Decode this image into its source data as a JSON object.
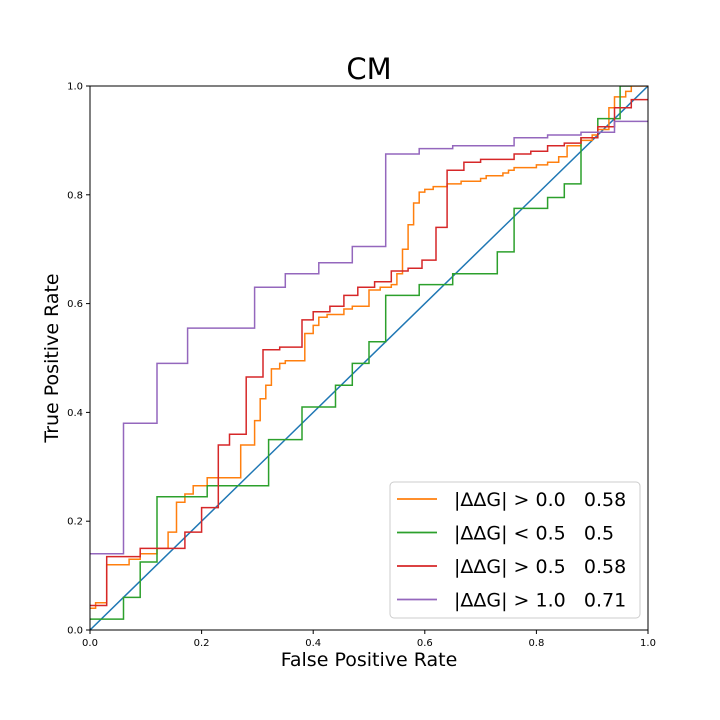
{
  "chart_data": {
    "type": "line",
    "title": "CM",
    "xlabel": "False Positive Rate",
    "ylabel": "True Positive Rate",
    "xlim": [
      0.0,
      1.0
    ],
    "ylim": [
      0.0,
      1.0
    ],
    "xticks": [
      "0.0",
      "0.2",
      "0.4",
      "0.6",
      "0.8",
      "1.0"
    ],
    "yticks": [
      "0.0",
      "0.2",
      "0.4",
      "0.6",
      "0.8",
      "1.0"
    ],
    "grid": false,
    "legend_position": "lower-right",
    "diagonal": {
      "color": "#1f77b4",
      "x": [
        0.0,
        1.0
      ],
      "y": [
        0.0,
        1.0
      ]
    },
    "series": [
      {
        "name": "|ΔΔG| > 0.0   0.58",
        "color": "#ff7f0e",
        "steps": [
          [
            0,
            0.04
          ],
          [
            0.01,
            0.04
          ],
          [
            0.01,
            0.05
          ],
          [
            0.03,
            0.05
          ],
          [
            0.03,
            0.12
          ],
          [
            0.07,
            0.12
          ],
          [
            0.07,
            0.13
          ],
          [
            0.09,
            0.13
          ],
          [
            0.09,
            0.14
          ],
          [
            0.12,
            0.14
          ],
          [
            0.12,
            0.15
          ],
          [
            0.14,
            0.15
          ],
          [
            0.14,
            0.18
          ],
          [
            0.155,
            0.18
          ],
          [
            0.155,
            0.235
          ],
          [
            0.17,
            0.235
          ],
          [
            0.17,
            0.25
          ],
          [
            0.185,
            0.25
          ],
          [
            0.185,
            0.265
          ],
          [
            0.21,
            0.265
          ],
          [
            0.21,
            0.28
          ],
          [
            0.27,
            0.28
          ],
          [
            0.27,
            0.34
          ],
          [
            0.295,
            0.34
          ],
          [
            0.295,
            0.385
          ],
          [
            0.305,
            0.385
          ],
          [
            0.305,
            0.425
          ],
          [
            0.315,
            0.425
          ],
          [
            0.315,
            0.45
          ],
          [
            0.325,
            0.45
          ],
          [
            0.325,
            0.48
          ],
          [
            0.34,
            0.48
          ],
          [
            0.34,
            0.49
          ],
          [
            0.35,
            0.49
          ],
          [
            0.35,
            0.495
          ],
          [
            0.385,
            0.495
          ],
          [
            0.385,
            0.545
          ],
          [
            0.4,
            0.545
          ],
          [
            0.4,
            0.56
          ],
          [
            0.41,
            0.56
          ],
          [
            0.41,
            0.575
          ],
          [
            0.425,
            0.575
          ],
          [
            0.425,
            0.58
          ],
          [
            0.455,
            0.58
          ],
          [
            0.455,
            0.59
          ],
          [
            0.47,
            0.59
          ],
          [
            0.47,
            0.595
          ],
          [
            0.5,
            0.595
          ],
          [
            0.5,
            0.625
          ],
          [
            0.52,
            0.625
          ],
          [
            0.52,
            0.63
          ],
          [
            0.54,
            0.63
          ],
          [
            0.54,
            0.635
          ],
          [
            0.55,
            0.635
          ],
          [
            0.55,
            0.655
          ],
          [
            0.56,
            0.655
          ],
          [
            0.56,
            0.7
          ],
          [
            0.57,
            0.7
          ],
          [
            0.57,
            0.745
          ],
          [
            0.58,
            0.745
          ],
          [
            0.58,
            0.785
          ],
          [
            0.59,
            0.785
          ],
          [
            0.59,
            0.805
          ],
          [
            0.6,
            0.805
          ],
          [
            0.6,
            0.81
          ],
          [
            0.615,
            0.81
          ],
          [
            0.615,
            0.815
          ],
          [
            0.64,
            0.815
          ],
          [
            0.64,
            0.82
          ],
          [
            0.665,
            0.82
          ],
          [
            0.665,
            0.825
          ],
          [
            0.7,
            0.825
          ],
          [
            0.7,
            0.83
          ],
          [
            0.71,
            0.83
          ],
          [
            0.71,
            0.835
          ],
          [
            0.74,
            0.835
          ],
          [
            0.74,
            0.84
          ],
          [
            0.75,
            0.84
          ],
          [
            0.75,
            0.845
          ],
          [
            0.76,
            0.845
          ],
          [
            0.76,
            0.85
          ],
          [
            0.8,
            0.85
          ],
          [
            0.8,
            0.855
          ],
          [
            0.82,
            0.855
          ],
          [
            0.82,
            0.86
          ],
          [
            0.84,
            0.86
          ],
          [
            0.84,
            0.87
          ],
          [
            0.855,
            0.87
          ],
          [
            0.855,
            0.89
          ],
          [
            0.88,
            0.89
          ],
          [
            0.88,
            0.9
          ],
          [
            0.9,
            0.9
          ],
          [
            0.9,
            0.91
          ],
          [
            0.91,
            0.91
          ],
          [
            0.91,
            0.92
          ],
          [
            0.93,
            0.92
          ],
          [
            0.93,
            0.96
          ],
          [
            0.94,
            0.96
          ],
          [
            0.94,
            0.98
          ],
          [
            0.96,
            0.98
          ],
          [
            0.96,
            0.99
          ],
          [
            0.97,
            0.99
          ],
          [
            0.97,
            1.0
          ],
          [
            1.0,
            1.0
          ]
        ]
      },
      {
        "name": "|ΔΔG| < 0.5   0.5",
        "color": "#2ca02c",
        "steps": [
          [
            0,
            0.02
          ],
          [
            0.06,
            0.02
          ],
          [
            0.06,
            0.06
          ],
          [
            0.09,
            0.06
          ],
          [
            0.09,
            0.125
          ],
          [
            0.12,
            0.125
          ],
          [
            0.12,
            0.245
          ],
          [
            0.21,
            0.245
          ],
          [
            0.21,
            0.265
          ],
          [
            0.32,
            0.265
          ],
          [
            0.32,
            0.35
          ],
          [
            0.38,
            0.35
          ],
          [
            0.38,
            0.41
          ],
          [
            0.44,
            0.41
          ],
          [
            0.44,
            0.45
          ],
          [
            0.47,
            0.45
          ],
          [
            0.47,
            0.49
          ],
          [
            0.5,
            0.49
          ],
          [
            0.5,
            0.53
          ],
          [
            0.53,
            0.53
          ],
          [
            0.53,
            0.615
          ],
          [
            0.59,
            0.615
          ],
          [
            0.59,
            0.635
          ],
          [
            0.65,
            0.635
          ],
          [
            0.65,
            0.655
          ],
          [
            0.73,
            0.655
          ],
          [
            0.73,
            0.695
          ],
          [
            0.76,
            0.695
          ],
          [
            0.76,
            0.775
          ],
          [
            0.82,
            0.775
          ],
          [
            0.82,
            0.795
          ],
          [
            0.85,
            0.795
          ],
          [
            0.85,
            0.82
          ],
          [
            0.88,
            0.82
          ],
          [
            0.88,
            0.905
          ],
          [
            0.91,
            0.905
          ],
          [
            0.91,
            0.94
          ],
          [
            0.95,
            0.94
          ],
          [
            0.95,
            1.0
          ],
          [
            0.97,
            1.0
          ]
        ]
      },
      {
        "name": "|ΔΔG| > 0.5   0.58",
        "color": "#d62728",
        "steps": [
          [
            0,
            0.045
          ],
          [
            0.03,
            0.045
          ],
          [
            0.03,
            0.135
          ],
          [
            0.09,
            0.135
          ],
          [
            0.09,
            0.15
          ],
          [
            0.17,
            0.15
          ],
          [
            0.17,
            0.18
          ],
          [
            0.2,
            0.18
          ],
          [
            0.2,
            0.225
          ],
          [
            0.23,
            0.225
          ],
          [
            0.23,
            0.34
          ],
          [
            0.25,
            0.34
          ],
          [
            0.25,
            0.36
          ],
          [
            0.28,
            0.36
          ],
          [
            0.28,
            0.465
          ],
          [
            0.31,
            0.465
          ],
          [
            0.31,
            0.515
          ],
          [
            0.34,
            0.515
          ],
          [
            0.34,
            0.52
          ],
          [
            0.38,
            0.52
          ],
          [
            0.38,
            0.57
          ],
          [
            0.4,
            0.57
          ],
          [
            0.4,
            0.585
          ],
          [
            0.43,
            0.585
          ],
          [
            0.43,
            0.595
          ],
          [
            0.455,
            0.595
          ],
          [
            0.455,
            0.615
          ],
          [
            0.48,
            0.615
          ],
          [
            0.48,
            0.63
          ],
          [
            0.51,
            0.63
          ],
          [
            0.51,
            0.64
          ],
          [
            0.54,
            0.64
          ],
          [
            0.54,
            0.66
          ],
          [
            0.57,
            0.66
          ],
          [
            0.57,
            0.665
          ],
          [
            0.595,
            0.665
          ],
          [
            0.595,
            0.68
          ],
          [
            0.62,
            0.68
          ],
          [
            0.62,
            0.74
          ],
          [
            0.64,
            0.74
          ],
          [
            0.64,
            0.845
          ],
          [
            0.67,
            0.845
          ],
          [
            0.67,
            0.86
          ],
          [
            0.7,
            0.86
          ],
          [
            0.7,
            0.865
          ],
          [
            0.76,
            0.865
          ],
          [
            0.76,
            0.875
          ],
          [
            0.79,
            0.875
          ],
          [
            0.79,
            0.88
          ],
          [
            0.82,
            0.88
          ],
          [
            0.82,
            0.89
          ],
          [
            0.85,
            0.89
          ],
          [
            0.85,
            0.895
          ],
          [
            0.88,
            0.895
          ],
          [
            0.88,
            0.905
          ],
          [
            0.91,
            0.905
          ],
          [
            0.91,
            0.925
          ],
          [
            0.94,
            0.925
          ],
          [
            0.94,
            0.96
          ],
          [
            0.97,
            0.96
          ],
          [
            0.97,
            0.975
          ],
          [
            1.0,
            0.975
          ]
        ]
      },
      {
        "name": "|ΔΔG| > 1.0   0.71",
        "color": "#9467bd",
        "steps": [
          [
            0,
            0.14
          ],
          [
            0.06,
            0.14
          ],
          [
            0.06,
            0.38
          ],
          [
            0.12,
            0.38
          ],
          [
            0.12,
            0.49
          ],
          [
            0.175,
            0.49
          ],
          [
            0.175,
            0.555
          ],
          [
            0.295,
            0.555
          ],
          [
            0.295,
            0.63
          ],
          [
            0.35,
            0.63
          ],
          [
            0.35,
            0.655
          ],
          [
            0.41,
            0.655
          ],
          [
            0.41,
            0.675
          ],
          [
            0.47,
            0.675
          ],
          [
            0.47,
            0.705
          ],
          [
            0.53,
            0.705
          ],
          [
            0.53,
            0.875
          ],
          [
            0.59,
            0.875
          ],
          [
            0.59,
            0.885
          ],
          [
            0.65,
            0.885
          ],
          [
            0.65,
            0.89
          ],
          [
            0.76,
            0.89
          ],
          [
            0.76,
            0.905
          ],
          [
            0.82,
            0.905
          ],
          [
            0.82,
            0.91
          ],
          [
            0.88,
            0.91
          ],
          [
            0.88,
            0.915
          ],
          [
            0.94,
            0.915
          ],
          [
            0.94,
            0.935
          ],
          [
            1.0,
            0.935
          ]
        ]
      }
    ]
  }
}
